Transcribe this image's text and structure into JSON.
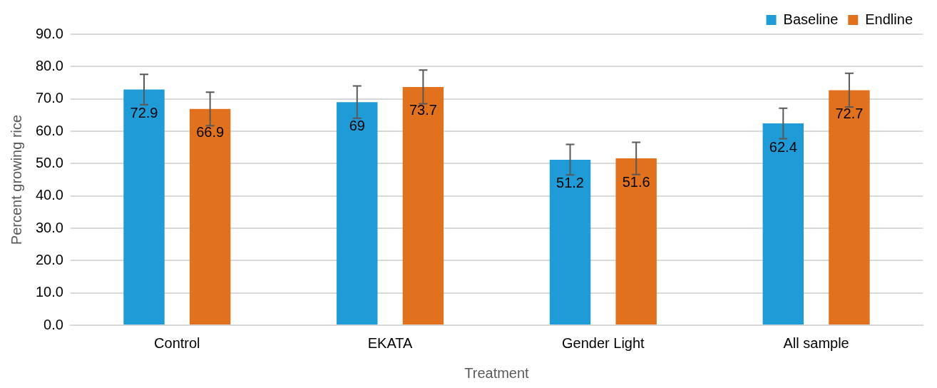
{
  "chart_data": {
    "type": "bar",
    "xlabel": "Treatment",
    "ylabel": "Percent growing rice",
    "categories": [
      "Control",
      "EKATA",
      "Gender Light",
      "All sample"
    ],
    "series": [
      {
        "name": "Baseline",
        "color": "#1f9bd7",
        "values": [
          72.9,
          69,
          51.2,
          62.4
        ],
        "errors": [
          4.7,
          5,
          4.7,
          4.7
        ]
      },
      {
        "name": "Endline",
        "color": "#e2711d",
        "values": [
          66.9,
          73.7,
          51.6,
          72.7
        ],
        "errors": [
          5.2,
          5.2,
          5,
          5.2
        ]
      }
    ],
    "ylim": [
      0,
      90
    ],
    "yticks": [
      {
        "value": 0,
        "label": "0.0"
      },
      {
        "value": 10,
        "label": "10.0"
      },
      {
        "value": 20,
        "label": "20.0"
      },
      {
        "value": 30,
        "label": "30.0"
      },
      {
        "value": 40,
        "label": "40.0"
      },
      {
        "value": 50,
        "label": "50.0"
      },
      {
        "value": 60,
        "label": "60.0"
      },
      {
        "value": 70,
        "label": "70.0"
      },
      {
        "value": 80,
        "label": "80.0"
      },
      {
        "value": 90,
        "label": "90.0"
      }
    ],
    "grid": "y",
    "legend": "top right",
    "data_labels": true
  }
}
